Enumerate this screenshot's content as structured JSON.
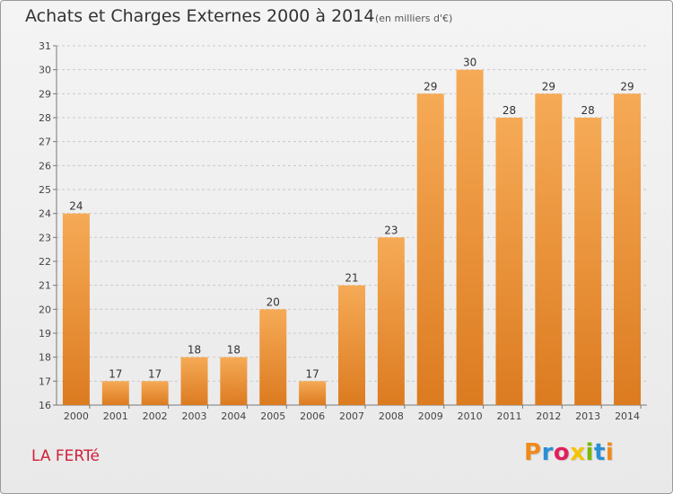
{
  "header": {
    "title": "Achats et Charges Externes 2000 à 2014",
    "subtitle": "(en milliers d'€)"
  },
  "footer": {
    "commune": "LA FERTé",
    "logo_text": "Proxiti"
  },
  "colors": {
    "bar_top": "#f6aa56",
    "bar_bottom": "#dc7b20",
    "grid": "#c9c9c9",
    "commune": "#d0203a",
    "logo_letters": [
      "#f08a1a",
      "#2b8fd6",
      "#e0205a",
      "#f5c400",
      "#7ab800",
      "#2b8fd6",
      "#f08a1a"
    ]
  },
  "chart_data": {
    "type": "bar",
    "categories": [
      "2000",
      "2001",
      "2002",
      "2003",
      "2004",
      "2005",
      "2006",
      "2007",
      "2008",
      "2009",
      "2010",
      "2011",
      "2012",
      "2013",
      "2014"
    ],
    "values": [
      24,
      17,
      17,
      18,
      18,
      20,
      17,
      21,
      23,
      29,
      30,
      28,
      29,
      28,
      29
    ],
    "data_labels": [
      "24",
      "17",
      "17",
      "18",
      "18",
      "20",
      "17",
      "21",
      "23",
      "29",
      "30",
      "28",
      "29",
      "28",
      "29"
    ],
    "ylim": [
      16,
      31
    ],
    "yticks": [
      "16",
      "17",
      "18",
      "19",
      "20",
      "21",
      "22",
      "23",
      "24",
      "25",
      "26",
      "27",
      "28",
      "29",
      "30",
      "31"
    ],
    "grid": true,
    "title": "Achats et Charges Externes 2000 à 2014",
    "xlabel": "",
    "ylabel": ""
  }
}
